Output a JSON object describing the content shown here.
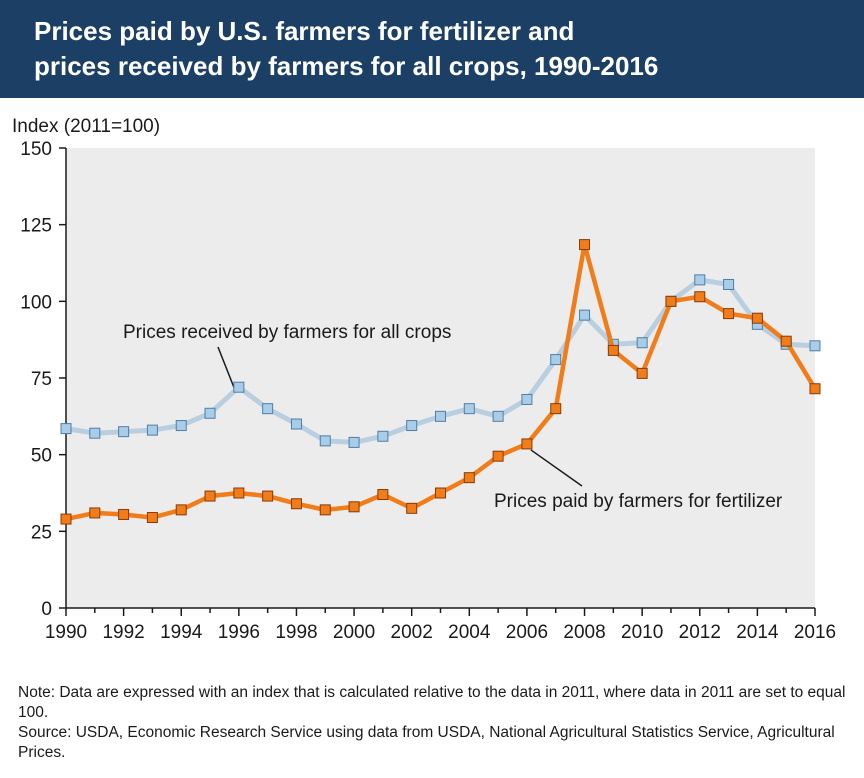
{
  "header": {
    "title_line1": "Prices paid by U.S. farmers for fertilizer and",
    "title_line2": "prices received by farmers for all crops, 1990-2016"
  },
  "chart_data": {
    "type": "line",
    "title": "Prices paid by U.S. farmers for fertilizer and prices received by farmers for all crops, 1990-2016",
    "ylabel": "Index (2011=100)",
    "xlabel": "",
    "xlim": [
      1990,
      2016
    ],
    "ylim": [
      0,
      150
    ],
    "grid": false,
    "x": [
      1990,
      1991,
      1992,
      1993,
      1994,
      1995,
      1996,
      1997,
      1998,
      1999,
      2000,
      2001,
      2002,
      2003,
      2004,
      2005,
      2006,
      2007,
      2008,
      2009,
      2010,
      2011,
      2012,
      2013,
      2014,
      2015,
      2016
    ],
    "x_ticks": [
      "1990",
      "1992",
      "1994",
      "1996",
      "1998",
      "2000",
      "2002",
      "2004",
      "2006",
      "2008",
      "2010",
      "2012",
      "2014",
      "2016"
    ],
    "y_ticks": [
      "0",
      "25",
      "50",
      "75",
      "100",
      "125",
      "150"
    ],
    "series": [
      {
        "name": "Prices received by farmers for all crops",
        "color": "#b9cfe0",
        "marker_fill": "#a9cde8",
        "values": [
          58.5,
          57,
          57.5,
          58,
          59.5,
          63.5,
          72,
          65,
          60,
          54.5,
          54,
          56,
          59.5,
          62.5,
          65,
          62.5,
          68,
          81,
          95.5,
          86,
          86.5,
          100,
          107,
          105.5,
          92.5,
          86,
          85.5
        ]
      },
      {
        "name": "Prices paid by farmers for fertilizer",
        "color": "#f07d19",
        "marker_fill": "#f07d19",
        "values": [
          29,
          31,
          30.5,
          29.5,
          32,
          36.5,
          37.5,
          36.5,
          34,
          32,
          33,
          37,
          32.5,
          37.5,
          42.5,
          49.5,
          53.5,
          65,
          118.5,
          84,
          76.5,
          100,
          101.5,
          96,
          94.5,
          87,
          71.5
        ]
      }
    ]
  },
  "annotations": {
    "crops_label": "Prices received by farmers for all crops",
    "fertilizer_label": "Prices paid by farmers for fertilizer"
  },
  "footnote": {
    "note": "Note: Data are expressed with an index that is calculated relative to the data in 2011, where data in 2011 are set to equal 100.",
    "source": "Source: USDA, Economic Research Service using data from USDA, National Agricultural Statistics Service, Agricultural Prices."
  }
}
